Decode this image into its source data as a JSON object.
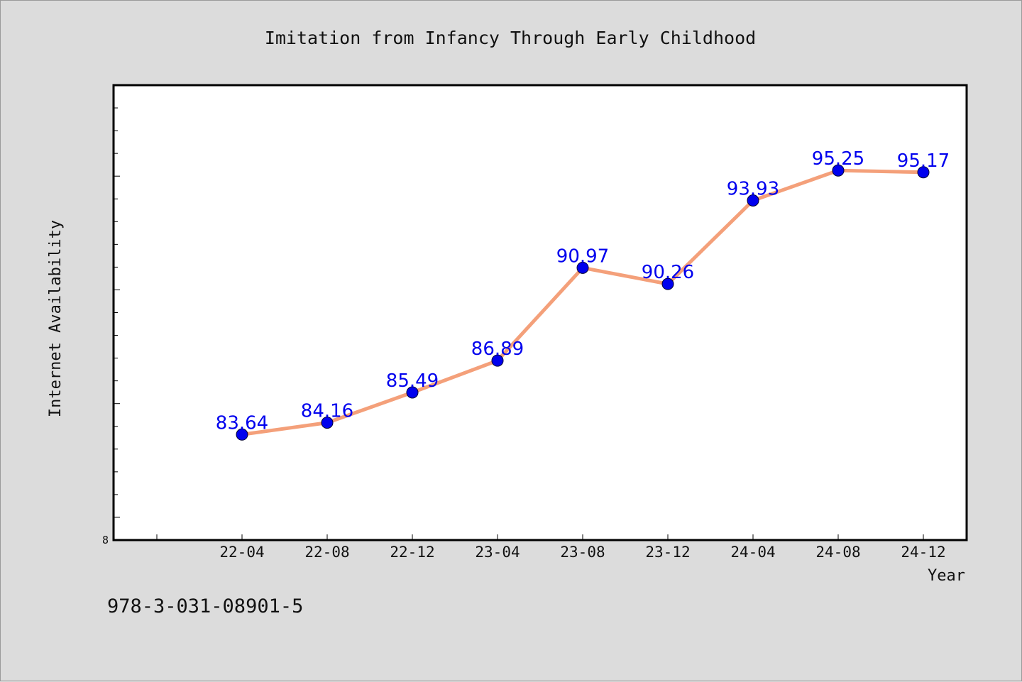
{
  "chart_data": {
    "type": "line",
    "title": "Imitation from Infancy Through Early Childhood",
    "xlabel": "Year",
    "ylabel": "Internet Availability",
    "categories": [
      "22-04",
      "22-08",
      "22-12",
      "23-04",
      "23-08",
      "23-12",
      "24-04",
      "24-08",
      "24-12"
    ],
    "series": [
      {
        "values": [
          83.64,
          84.16,
          85.49,
          86.89,
          90.97,
          90.26,
          93.93,
          95.25,
          95.17
        ]
      }
    ],
    "ylim": [
      79.0,
      99.0
    ],
    "y_tick_labels": [
      "8"
    ],
    "grid": false,
    "data_labels": true,
    "colors": {
      "line": "#f4a07a",
      "marker": "#0000ee",
      "label": "#0000ee",
      "plot_bg": "#ffffff",
      "page_bg": "#dcdcdc"
    }
  },
  "footer": {
    "text": "978-3-031-08901-5"
  }
}
